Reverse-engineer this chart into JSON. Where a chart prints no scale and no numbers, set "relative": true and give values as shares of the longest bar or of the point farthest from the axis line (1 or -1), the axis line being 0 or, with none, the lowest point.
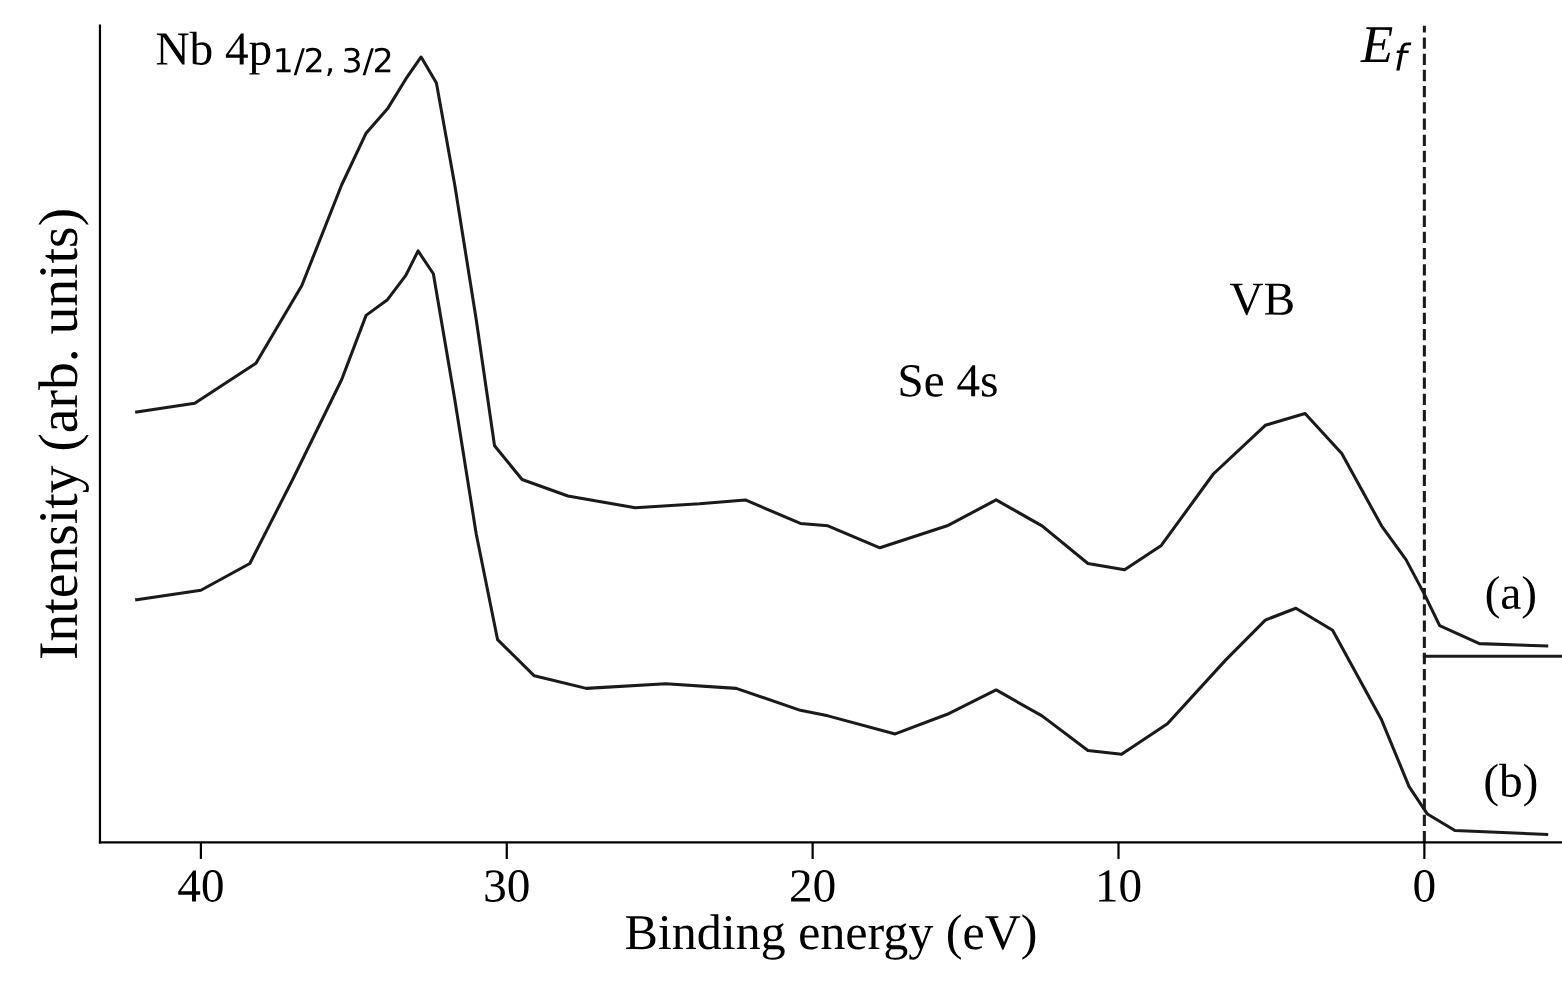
{
  "chart_data": {
    "type": "line",
    "relative": true,
    "xlabel": "Binding energy (eV)",
    "ylabel": "Intensity (arb. units)",
    "xlim": [
      43.3,
      -4.5
    ],
    "xticks": [
      40,
      30,
      20,
      10,
      0
    ],
    "tick_labels": "x",
    "grid": false,
    "marker": "none",
    "line_style": "solid",
    "series": [
      {
        "color": "#1a1a1a",
        "x": [
          42.1,
          40.2,
          38.2,
          36.7,
          35.4,
          34.6,
          33.9,
          33.3,
          32.8,
          32.3,
          31.7,
          31.0,
          30.4,
          29.5,
          28.0,
          25.8,
          23.7,
          22.2,
          20.4,
          19.5,
          17.8,
          15.6,
          14.0,
          12.5,
          11.0,
          9.8,
          8.6,
          6.9,
          5.2,
          3.9,
          2.7,
          1.4,
          0.6,
          0,
          -0.5,
          -1.8,
          -4.0
        ],
        "values": [
          0.548,
          0.559,
          0.61,
          0.709,
          0.837,
          0.903,
          0.934,
          0.972,
          1.0,
          0.967,
          0.837,
          0.666,
          0.505,
          0.462,
          0.441,
          0.426,
          0.431,
          0.436,
          0.406,
          0.403,
          0.375,
          0.403,
          0.436,
          0.403,
          0.355,
          0.347,
          0.378,
          0.469,
          0.531,
          0.546,
          0.495,
          0.403,
          0.36,
          0.316,
          0.276,
          0.253,
          0.25
        ]
      },
      {
        "color": "#1a1a1a",
        "x": [
          42.1,
          40.0,
          38.4,
          37.0,
          35.4,
          34.6,
          33.9,
          33.3,
          32.9,
          32.4,
          31.7,
          31.0,
          30.3,
          29.1,
          27.4,
          24.8,
          22.5,
          20.4,
          19.5,
          17.3,
          15.6,
          14.0,
          12.5,
          11.0,
          9.9,
          8.4,
          6.5,
          5.2,
          4.2,
          3.0,
          1.4,
          0.5,
          -0.1,
          -1.0,
          -4.0
        ],
        "values": [
          0.309,
          0.321,
          0.355,
          0.462,
          0.589,
          0.671,
          0.691,
          0.722,
          0.753,
          0.724,
          0.564,
          0.393,
          0.258,
          0.212,
          0.196,
          0.202,
          0.196,
          0.168,
          0.161,
          0.138,
          0.163,
          0.194,
          0.161,
          0.117,
          0.112,
          0.151,
          0.232,
          0.283,
          0.298,
          0.27,
          0.156,
          0.071,
          0.036,
          0.015,
          0.01
        ]
      },
      {
        "color": "#1a1a1a",
        "x": [
          0,
          -4.5
        ],
        "values": [
          0.237,
          0.237
        ]
      }
    ],
    "ref_lines": [
      {
        "axis": "x",
        "value": 0,
        "label": "E$_{f}$",
        "line_style": "dashed",
        "color": "#1a1a1a"
      }
    ],
    "annotations": [
      "Nb 4p$_{1/2,3/2}$",
      "Se 4s",
      "VB",
      "(a)",
      "(b)"
    ]
  }
}
